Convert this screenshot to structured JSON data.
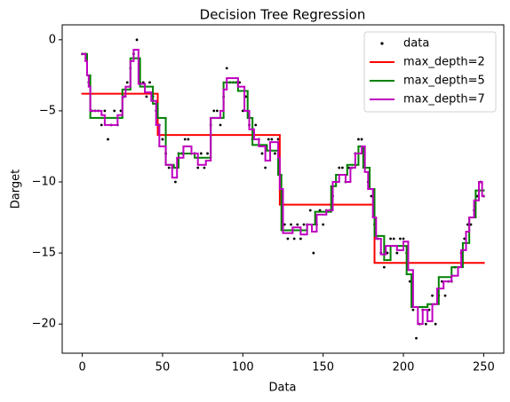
{
  "chart_data": {
    "type": "scatter-step",
    "title": "Decision Tree Regression",
    "x_label": "Data",
    "y_label": "Darget",
    "xlim": [
      -12.5,
      262.5
    ],
    "ylim": [
      -22.05,
      1.05
    ],
    "xticks": [
      0,
      50,
      100,
      150,
      200,
      250
    ],
    "yticks": [
      {
        "value": 0,
        "label": "0"
      },
      {
        "value": -5,
        "label": "−5"
      },
      {
        "value": -10,
        "label": "−10"
      },
      {
        "value": -15,
        "label": "−15"
      },
      {
        "value": -20,
        "label": "−20"
      }
    ],
    "legend_position": "upper right",
    "scatter": {
      "name": "data",
      "color": "#000000",
      "x": [
        0,
        2,
        4,
        6,
        8,
        10,
        12,
        14,
        16,
        18,
        20,
        22,
        24,
        26,
        28,
        30,
        32,
        34,
        36,
        38,
        40,
        42,
        44,
        46,
        48,
        50,
        52,
        54,
        56,
        58,
        60,
        62,
        64,
        66,
        68,
        70,
        72,
        74,
        76,
        78,
        80,
        82,
        84,
        86,
        88,
        90,
        92,
        94,
        96,
        98,
        100,
        102,
        104,
        106,
        108,
        110,
        112,
        114,
        116,
        118,
        120,
        122,
        124,
        126,
        128,
        130,
        132,
        134,
        136,
        138,
        140,
        142,
        144,
        146,
        148,
        150,
        152,
        154,
        156,
        158,
        160,
        162,
        164,
        166,
        168,
        170,
        172,
        174,
        176,
        178,
        180,
        182,
        184,
        186,
        188,
        190,
        192,
        194,
        196,
        198,
        200,
        202,
        204,
        206,
        208,
        210,
        212,
        214,
        216,
        218,
        220,
        222,
        224,
        226,
        228,
        230,
        232,
        234,
        236,
        238,
        240,
        242,
        244,
        246,
        248,
        250
      ],
      "values": [
        -1,
        -1,
        -3,
        -5,
        -5,
        -5,
        -6,
        -5,
        -7,
        -6,
        -5,
        -6,
        -5,
        -4,
        -3,
        -2,
        -1,
        0,
        -3,
        -3,
        -4,
        -3,
        -4,
        -5,
        -6,
        -7,
        -8,
        -9,
        -9,
        -10,
        -8,
        -8,
        -7,
        -7,
        -8,
        -8,
        -9,
        -8,
        -9,
        -8,
        -6,
        -5,
        -5,
        -6,
        -4,
        -2,
        -3,
        -3,
        -3,
        -3,
        -5,
        -4,
        -6,
        -7,
        -6,
        -7,
        -8,
        -9,
        -7,
        -7,
        -8,
        -7,
        -11,
        -13,
        -14,
        -13,
        -14,
        -13,
        -14,
        -13,
        -13,
        -12,
        -15,
        -13,
        -12,
        -13,
        -12,
        -12,
        -11,
        -10,
        -9,
        -9,
        -10,
        -9,
        -9,
        -8,
        -7,
        -7,
        -9,
        -10,
        -11,
        -13,
        -14,
        -15,
        -16,
        -15,
        -14,
        -14,
        -15,
        -14,
        -14,
        -15,
        -17,
        -19,
        -21,
        -20,
        -19,
        -20,
        -19,
        -18,
        -20,
        -18,
        -17,
        -18,
        -17,
        -17,
        -16,
        -16,
        -15,
        -14,
        -13,
        -13,
        -12,
        -11,
        -10,
        -11
      ]
    },
    "series": [
      {
        "name": "max_depth=2",
        "color": "#ff0000",
        "x": [
          0,
          47,
          123,
          182,
          250
        ],
        "values": [
          -3.8,
          -6.7,
          -11.6,
          -15.7,
          -15.7
        ]
      },
      {
        "name": "max_depth=5",
        "color": "#008000",
        "x": [
          0,
          3,
          5,
          25,
          30,
          36,
          44,
          47,
          52,
          57,
          60,
          70,
          80,
          88,
          97,
          103,
          106,
          115,
          122,
          124,
          140,
          145,
          155,
          158,
          165,
          172,
          175,
          179,
          182,
          188,
          192,
          202,
          205,
          215,
          222,
          230,
          237,
          241,
          245,
          250
        ],
        "values": [
          -1,
          -2.5,
          -5.5,
          -3.5,
          -1.3,
          -3.3,
          -4.5,
          -5.5,
          -8.8,
          -9,
          -8,
          -8.3,
          -5.5,
          -3,
          -3.6,
          -5.5,
          -7.4,
          -7.8,
          -9.5,
          -13.4,
          -13,
          -12.1,
          -10.3,
          -9.5,
          -8.8,
          -7.5,
          -9,
          -10.5,
          -13.8,
          -15.5,
          -14.5,
          -16.5,
          -18.8,
          -18.6,
          -16.7,
          -16,
          -14.3,
          -12.5,
          -10.6,
          -10.6
        ]
      },
      {
        "name": "max_depth=7",
        "color": "#bf00bf",
        "x": [
          0,
          2,
          3,
          4,
          5,
          12,
          14,
          22,
          25,
          27,
          30,
          32,
          35,
          39,
          43,
          46,
          48,
          52,
          56,
          59,
          63,
          68,
          72,
          77,
          80,
          86,
          88,
          90,
          97,
          101,
          104,
          107,
          110,
          114,
          117,
          122,
          123,
          125,
          131,
          136,
          140,
          143,
          146,
          152,
          156,
          160,
          164,
          167,
          170,
          174,
          176,
          178,
          181,
          183,
          186,
          189,
          196,
          200,
          203,
          206,
          209,
          212,
          215,
          218,
          221,
          225,
          230,
          234,
          236,
          239,
          241,
          244,
          247,
          249,
          250
        ],
        "values": [
          -1,
          -1.5,
          -2.5,
          -3.3,
          -5,
          -5.3,
          -6,
          -5.3,
          -4,
          -3.3,
          -1.5,
          -0.7,
          -3.1,
          -3.7,
          -4.3,
          -6,
          -7.5,
          -8.8,
          -9.7,
          -8.3,
          -7.5,
          -8,
          -8.8,
          -8.5,
          -5.5,
          -5,
          -3.5,
          -2.7,
          -3.3,
          -5,
          -6.3,
          -7,
          -7.5,
          -8.5,
          -7.2,
          -8.3,
          -10.5,
          -13.6,
          -13.2,
          -13.7,
          -13,
          -13.5,
          -12.3,
          -12,
          -10,
          -9.5,
          -10,
          -9,
          -8,
          -7.5,
          -9.3,
          -10.5,
          -12.5,
          -14,
          -15.1,
          -14.5,
          -14.8,
          -14.2,
          -16.2,
          -18.8,
          -20,
          -19,
          -19.8,
          -18.6,
          -17.5,
          -17,
          -16.6,
          -16,
          -14.8,
          -13.5,
          -12.5,
          -11.3,
          -10,
          -11,
          -11
        ]
      }
    ]
  }
}
